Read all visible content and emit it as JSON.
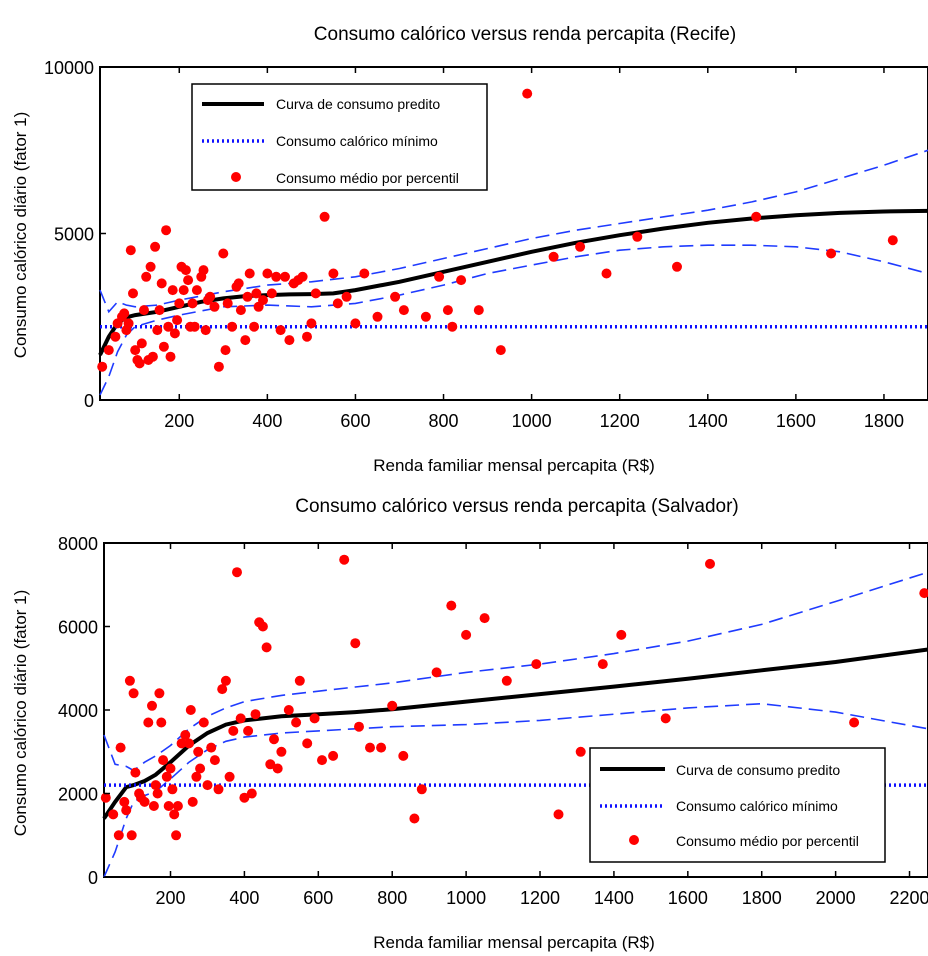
{
  "chart_data": [
    {
      "type": "scatter",
      "title": "Consumo calórico versus renda percapita (Recife)",
      "xlabel": "Renda familiar mensal percapita (R$)",
      "ylabel": "Consumo calórico diário (fator 1)",
      "xlim": [
        20,
        1900
      ],
      "ylim": [
        0,
        10000
      ],
      "xticks": [
        200,
        400,
        600,
        800,
        1000,
        1200,
        1400,
        1600,
        1800
      ],
      "yticks": [
        0,
        5000,
        10000
      ],
      "grid": false,
      "legend_position": "top-left",
      "legend": [
        "Curva de consumo predito",
        "Consumo calórico mínimo",
        "Consumo médio por percentil"
      ],
      "series": [
        {
          "name": "Curva de consumo predito",
          "kind": "line",
          "color": "#000000",
          "x": [
            20,
            40,
            60,
            80,
            100,
            150,
            200,
            250,
            300,
            350,
            400,
            450,
            500,
            550,
            600,
            700,
            800,
            900,
            1000,
            1100,
            1200,
            1300,
            1400,
            1500,
            1600,
            1700,
            1800,
            1900
          ],
          "y": [
            1350,
            1900,
            2300,
            2480,
            2550,
            2650,
            2800,
            2950,
            3050,
            3120,
            3150,
            3170,
            3180,
            3200,
            3300,
            3550,
            3850,
            4150,
            4450,
            4720,
            4950,
            5150,
            5320,
            5450,
            5550,
            5620,
            5660,
            5680
          ]
        },
        {
          "name": "upper band",
          "kind": "dashed",
          "color": "#1f3bff",
          "x": [
            20,
            40,
            60,
            80,
            100,
            150,
            200,
            300,
            400,
            500,
            600,
            700,
            800,
            900,
            1000,
            1100,
            1200,
            1300,
            1400,
            1500,
            1600,
            1700,
            1800,
            1900
          ],
          "y": [
            3300,
            2650,
            2950,
            2850,
            2800,
            2850,
            3000,
            3250,
            3450,
            3550,
            3700,
            3950,
            4250,
            4550,
            4850,
            5100,
            5300,
            5500,
            5700,
            5950,
            6250,
            6650,
            7050,
            7500
          ]
        },
        {
          "name": "lower band",
          "kind": "dashed",
          "color": "#1f3bff",
          "x": [
            20,
            40,
            60,
            80,
            100,
            150,
            200,
            300,
            400,
            500,
            600,
            700,
            800,
            900,
            1000,
            1100,
            1200,
            1300,
            1400,
            1500,
            1600,
            1700,
            1800,
            1900
          ],
          "y": [
            150,
            700,
            1450,
            1950,
            2200,
            2400,
            2550,
            2800,
            2850,
            2800,
            2900,
            3150,
            3450,
            3800,
            4050,
            4300,
            4500,
            4600,
            4650,
            4650,
            4600,
            4450,
            4150,
            3800
          ]
        },
        {
          "name": "Consumo calórico mínimo",
          "kind": "dotted",
          "color": "#1010ff",
          "x": [
            20,
            1900
          ],
          "y": [
            2200,
            2200
          ]
        },
        {
          "name": "Consumo médio por percentil",
          "kind": "points",
          "color": "#ff0000",
          "x": [
            25,
            40,
            55,
            60,
            70,
            75,
            80,
            85,
            90,
            95,
            100,
            105,
            110,
            115,
            120,
            125,
            130,
            135,
            140,
            145,
            150,
            155,
            160,
            165,
            170,
            175,
            180,
            185,
            190,
            195,
            200,
            205,
            210,
            215,
            220,
            225,
            230,
            235,
            240,
            250,
            255,
            260,
            265,
            270,
            280,
            290,
            300,
            305,
            310,
            320,
            330,
            335,
            340,
            350,
            355,
            360,
            370,
            375,
            380,
            390,
            400,
            410,
            420,
            430,
            440,
            450,
            460,
            470,
            480,
            490,
            500,
            510,
            530,
            550,
            560,
            580,
            600,
            620,
            650,
            690,
            710,
            760,
            790,
            810,
            820,
            840,
            880,
            930,
            990,
            1050,
            1110,
            1170,
            1240,
            1330,
            1510,
            1680,
            1820
          ],
          "y": [
            1000,
            1500,
            1900,
            2300,
            2500,
            2600,
            2100,
            2300,
            4500,
            3200,
            1500,
            1200,
            1100,
            1700,
            2700,
            3700,
            1200,
            4000,
            1300,
            4600,
            2100,
            2700,
            3500,
            1600,
            5100,
            2200,
            1300,
            3300,
            2000,
            2400,
            2900,
            4000,
            3300,
            3900,
            3600,
            2200,
            2900,
            2200,
            3300,
            3700,
            3900,
            2100,
            3000,
            3100,
            2800,
            1000,
            4400,
            1500,
            2900,
            2200,
            3400,
            3500,
            2700,
            1800,
            3100,
            3800,
            2200,
            3200,
            2800,
            3000,
            3800,
            3200,
            3700,
            2100,
            3700,
            1800,
            3500,
            3600,
            3700,
            1900,
            2300,
            3200,
            5500,
            3800,
            2900,
            3100,
            2300,
            3800,
            2500,
            3100,
            2700,
            2500,
            3700,
            2700,
            2200,
            3600,
            2700,
            1500,
            9200,
            4300,
            4600,
            3800,
            4900,
            4000,
            5500,
            4400,
            4800
          ]
        }
      ]
    },
    {
      "type": "scatter",
      "title": "Consumo calórico versus renda percapita (Salvador)",
      "xlabel": "Renda familiar mensal percapita (R$)",
      "ylabel": "Consumo calórico diário (fator 1)",
      "xlim": [
        20,
        2250
      ],
      "ylim": [
        0,
        8000
      ],
      "xticks": [
        200,
        400,
        600,
        800,
        1000,
        1200,
        1400,
        1600,
        1800,
        2000,
        2200
      ],
      "yticks": [
        0,
        2000,
        4000,
        6000,
        8000
      ],
      "grid": false,
      "legend_position": "bottom-right",
      "legend": [
        "Curva de consumo predito",
        "Consumo calórico mínimo",
        "Consumo médio por percentil"
      ],
      "series": [
        {
          "name": "Curva de consumo predito",
          "kind": "line",
          "color": "#000000",
          "x": [
            20,
            50,
            80,
            100,
            130,
            160,
            200,
            250,
            300,
            350,
            400,
            500,
            600,
            700,
            800,
            1000,
            1200,
            1400,
            1600,
            1800,
            2000,
            2250
          ],
          "y": [
            1400,
            1800,
            2150,
            2200,
            2300,
            2450,
            2750,
            3150,
            3450,
            3650,
            3750,
            3850,
            3900,
            3950,
            4020,
            4200,
            4380,
            4560,
            4750,
            4950,
            5150,
            5450
          ]
        },
        {
          "name": "upper band",
          "kind": "dashed",
          "color": "#1f3bff",
          "x": [
            20,
            50,
            80,
            100,
            130,
            160,
            200,
            250,
            300,
            350,
            400,
            500,
            600,
            700,
            800,
            1000,
            1200,
            1400,
            1600,
            1800,
            2000,
            2250
          ],
          "y": [
            3400,
            2700,
            2650,
            2550,
            2750,
            2900,
            3150,
            3550,
            3850,
            4050,
            4200,
            4350,
            4450,
            4550,
            4650,
            4900,
            5100,
            5350,
            5650,
            6050,
            6600,
            7300
          ]
        },
        {
          "name": "lower band",
          "kind": "dashed",
          "color": "#1f3bff",
          "x": [
            20,
            50,
            80,
            100,
            130,
            160,
            200,
            250,
            300,
            350,
            400,
            500,
            600,
            700,
            800,
            1000,
            1200,
            1400,
            1600,
            1800,
            2000,
            2250
          ],
          "y": [
            0,
            600,
            1400,
            1800,
            1950,
            2050,
            2350,
            2750,
            3050,
            3250,
            3350,
            3450,
            3500,
            3550,
            3600,
            3650,
            3750,
            3900,
            4050,
            4150,
            3950,
            3550
          ]
        },
        {
          "name": "Consumo calórico mínimo",
          "kind": "dotted",
          "color": "#1010ff",
          "x": [
            20,
            2250
          ],
          "y": [
            2200,
            2200
          ]
        },
        {
          "name": "Consumo médio por percentil",
          "kind": "points",
          "color": "#ff0000",
          "x": [
            25,
            45,
            60,
            65,
            75,
            80,
            90,
            95,
            100,
            105,
            115,
            120,
            130,
            140,
            150,
            155,
            160,
            165,
            170,
            175,
            180,
            190,
            195,
            200,
            205,
            210,
            215,
            220,
            230,
            240,
            250,
            255,
            260,
            270,
            275,
            280,
            290,
            300,
            310,
            320,
            330,
            340,
            350,
            360,
            370,
            380,
            390,
            400,
            410,
            420,
            430,
            440,
            450,
            460,
            470,
            480,
            490,
            500,
            520,
            540,
            550,
            570,
            590,
            610,
            640,
            670,
            700,
            710,
            740,
            770,
            800,
            830,
            860,
            880,
            920,
            960,
            1000,
            1050,
            1110,
            1190,
            1250,
            1310,
            1370,
            1420,
            1540,
            1660,
            2050,
            2240
          ],
          "y": [
            1900,
            1500,
            1000,
            3100,
            1800,
            1600,
            4700,
            1000,
            4400,
            2500,
            2000,
            1900,
            1800,
            3700,
            4100,
            1700,
            2200,
            2000,
            4400,
            3700,
            2800,
            2400,
            1700,
            2600,
            2100,
            1500,
            1000,
            1700,
            3200,
            3400,
            3200,
            4000,
            1800,
            2400,
            3000,
            2600,
            3700,
            2200,
            3100,
            2800,
            2100,
            4500,
            4700,
            2400,
            3500,
            7300,
            3800,
            1900,
            3500,
            2000,
            3900,
            6100,
            6000,
            5500,
            2700,
            3300,
            2600,
            3000,
            4000,
            3700,
            4700,
            3200,
            3800,
            2800,
            2900,
            7600,
            5600,
            3600,
            3100,
            3100,
            4100,
            2900,
            1400,
            2100,
            4900,
            6500,
            5800,
            6200,
            4700,
            5100,
            1500,
            3000,
            5100,
            5800,
            3800,
            7500,
            3700,
            6800
          ]
        }
      ]
    }
  ]
}
